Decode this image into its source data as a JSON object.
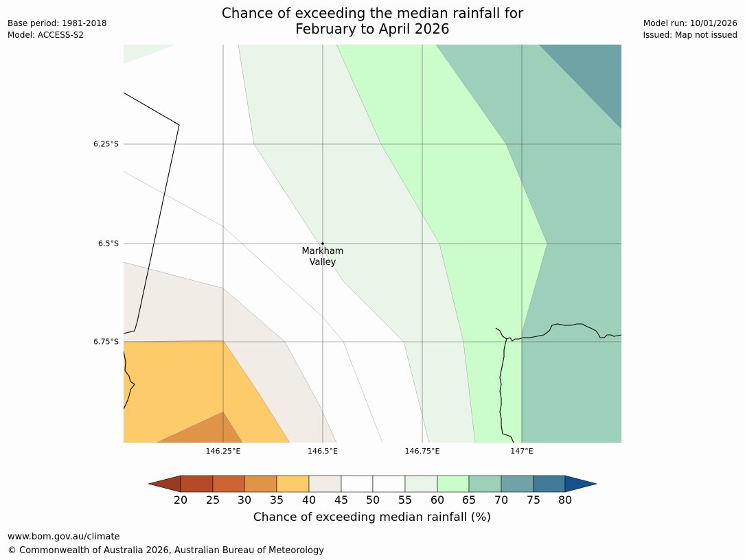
{
  "title": {
    "line1": "Chance of exceeding the median rainfall for",
    "line2": "February to April 2026"
  },
  "meta_left": {
    "base_period": "Base period: 1981-2018",
    "model": "Model: ACCESS-S2"
  },
  "meta_right": {
    "model_run": "Model run: 10/01/2026",
    "issued": "Issued: Map not issued"
  },
  "map": {
    "lat_labels": [
      "6.25°S",
      "6.5°S",
      "6.75°S"
    ],
    "lon_labels": [
      "146.25°E",
      "146.5°E",
      "146.75°E",
      "147°E"
    ],
    "place": {
      "name_line1": "Markham",
      "name_line2": "Valley"
    },
    "category_colors": {
      "below_20": "#9b3a22",
      "20_25": "#b54a27",
      "25_30": "#cc6433",
      "30_35": "#e09447",
      "35_40": "#fdcb69",
      "40_45": "#f1ece6",
      "45_55": "#fdfdfd",
      "55_60": "#e9f5e9",
      "60_65": "#cafdca",
      "65_70": "#9dd0ba",
      "70_75": "#6fa3a6",
      "75_80": "#427b99",
      "above_80": "#16518b"
    }
  },
  "colorbar": {
    "ticks": [
      "20",
      "25",
      "30",
      "35",
      "40",
      "45",
      "50",
      "55",
      "60",
      "65",
      "70",
      "75",
      "80"
    ],
    "label": "Chance of exceeding median rainfall (%)"
  },
  "footer": {
    "url": "www.bom.gov.au/climate",
    "copyright": "© Commonwealth of Australia 2026, Australian Bureau of Meteorology"
  }
}
